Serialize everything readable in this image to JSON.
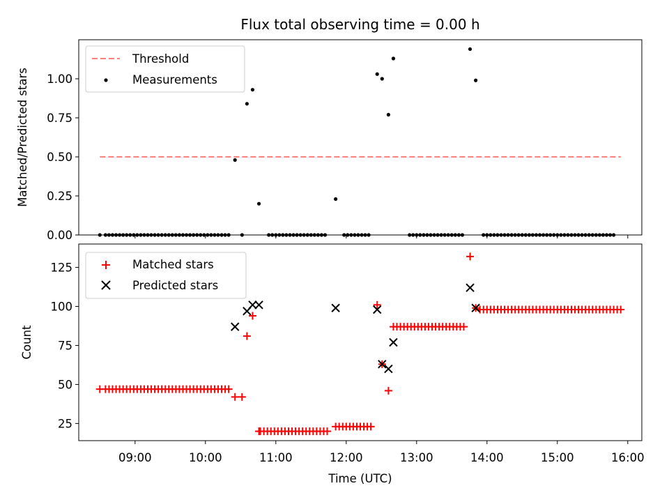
{
  "chart_data": [
    {
      "type": "scatter",
      "title": "Flux total observing time = 0.00 h",
      "ylabel": "Matched/Predicted stars",
      "xlabel": "",
      "xlim": [
        8.2,
        16.2
      ],
      "ylim": [
        0.0,
        1.25
      ],
      "yticks": [
        "0.00",
        "0.25",
        "0.50",
        "0.75",
        "1.00"
      ],
      "ytick_values": [
        0.0,
        0.25,
        0.5,
        0.75,
        1.0
      ],
      "xtick_values": [
        9,
        10,
        11,
        12,
        13,
        14,
        15,
        16
      ],
      "xtick_labels_shown": false,
      "legend": {
        "placement": "upper-left",
        "entries": [
          "Threshold",
          "Measurements"
        ]
      },
      "series": [
        {
          "name": "Threshold",
          "style": "dashed-line",
          "color": "#ff7f7f",
          "x": [
            8.5,
            15.9
          ],
          "y": [
            0.5,
            0.5
          ]
        },
        {
          "name": "Measurements",
          "style": "dot",
          "color": "#000000",
          "x": [
            8.5,
            8.58,
            8.63,
            8.68,
            8.73,
            8.78,
            8.83,
            8.88,
            8.93,
            8.98,
            9.03,
            9.08,
            9.13,
            9.18,
            9.23,
            9.28,
            9.33,
            9.38,
            9.43,
            9.48,
            9.53,
            9.58,
            9.63,
            9.68,
            9.73,
            9.78,
            9.83,
            9.88,
            9.93,
            9.98,
            10.03,
            10.08,
            10.13,
            10.18,
            10.23,
            10.28,
            10.33,
            10.42,
            10.52,
            10.59,
            10.67,
            10.76,
            10.9,
            10.95,
            11.0,
            11.05,
            11.1,
            11.15,
            11.2,
            11.25,
            11.3,
            11.35,
            11.4,
            11.45,
            11.5,
            11.55,
            11.6,
            11.65,
            11.7,
            11.85,
            11.97,
            12.02,
            12.07,
            12.12,
            12.17,
            12.22,
            12.27,
            12.32,
            12.44,
            12.51,
            12.6,
            12.67,
            12.9,
            12.95,
            13.0,
            13.05,
            13.1,
            13.15,
            13.2,
            13.25,
            13.3,
            13.35,
            13.4,
            13.45,
            13.5,
            13.55,
            13.6,
            13.65,
            13.76,
            13.84,
            13.95,
            14.0,
            14.05,
            14.1,
            14.15,
            14.2,
            14.25,
            14.3,
            14.35,
            14.4,
            14.45,
            14.5,
            14.55,
            14.6,
            14.65,
            14.7,
            14.75,
            14.8,
            14.85,
            14.9,
            14.95,
            15.0,
            15.05,
            15.1,
            15.15,
            15.2,
            15.25,
            15.3,
            15.35,
            15.4,
            15.45,
            15.5,
            15.55,
            15.6,
            15.65,
            15.7,
            15.75,
            15.8
          ],
          "y": [
            0,
            0,
            0,
            0,
            0,
            0,
            0,
            0,
            0,
            0,
            0,
            0,
            0,
            0,
            0,
            0,
            0,
            0,
            0,
            0,
            0,
            0,
            0,
            0,
            0,
            0,
            0,
            0,
            0,
            0,
            0,
            0,
            0,
            0,
            0,
            0,
            0,
            0.48,
            0,
            0.84,
            0.93,
            0.2,
            0,
            0,
            0,
            0,
            0,
            0,
            0,
            0,
            0,
            0,
            0,
            0,
            0,
            0,
            0,
            0,
            0,
            0.23,
            0,
            0,
            0,
            0,
            0,
            0,
            0,
            0,
            1.03,
            1.0,
            0.77,
            1.13,
            0,
            0,
            0,
            0,
            0,
            0,
            0,
            0,
            0,
            0,
            0,
            0,
            0,
            0,
            0,
            0,
            1.19,
            0.99,
            0,
            0,
            0,
            0,
            0,
            0,
            0,
            0,
            0,
            0,
            0,
            0,
            0,
            0,
            0,
            0,
            0,
            0,
            0,
            0,
            0,
            0,
            0,
            0,
            0,
            0,
            0,
            0,
            0,
            0,
            0,
            0,
            0,
            0,
            0,
            0,
            0,
            0
          ]
        }
      ],
      "colors": {
        "threshold": "#ff7f7f",
        "measurements": "#000000"
      }
    },
    {
      "type": "scatter",
      "title": "",
      "ylabel": "Count",
      "xlabel": "Time (UTC)",
      "xlim": [
        8.2,
        16.2
      ],
      "ylim": [
        14,
        140
      ],
      "yticks": [
        "25",
        "50",
        "75",
        "100",
        "125"
      ],
      "ytick_values": [
        25,
        50,
        75,
        100,
        125
      ],
      "xtick_values": [
        9,
        10,
        11,
        12,
        13,
        14,
        15,
        16
      ],
      "xticks": [
        "09:00",
        "10:00",
        "11:00",
        "12:00",
        "13:00",
        "14:00",
        "15:00",
        "16:00"
      ],
      "legend": {
        "placement": "upper-left",
        "entries": [
          "Matched stars",
          "Predicted stars"
        ]
      },
      "series": [
        {
          "name": "Matched stars",
          "marker": "+",
          "color": "#ff0000",
          "x": [
            8.5,
            8.58,
            8.63,
            8.68,
            8.73,
            8.78,
            8.83,
            8.88,
            8.93,
            8.98,
            9.03,
            9.08,
            9.13,
            9.18,
            9.23,
            9.28,
            9.33,
            9.38,
            9.43,
            9.48,
            9.53,
            9.58,
            9.63,
            9.68,
            9.73,
            9.78,
            9.83,
            9.88,
            9.93,
            9.98,
            10.03,
            10.08,
            10.13,
            10.18,
            10.23,
            10.28,
            10.33,
            10.42,
            10.52,
            10.59,
            10.67,
            10.76,
            10.78,
            10.83,
            10.88,
            10.93,
            10.98,
            11.03,
            11.08,
            11.13,
            11.18,
            11.23,
            11.28,
            11.33,
            11.38,
            11.43,
            11.48,
            11.53,
            11.58,
            11.63,
            11.68,
            11.73,
            11.85,
            11.9,
            11.95,
            12.0,
            12.05,
            12.1,
            12.15,
            12.2,
            12.25,
            12.3,
            12.35,
            12.44,
            12.51,
            12.6,
            12.67,
            12.72,
            12.77,
            12.82,
            12.87,
            12.92,
            12.97,
            13.02,
            13.07,
            13.12,
            13.17,
            13.22,
            13.27,
            13.32,
            13.37,
            13.42,
            13.47,
            13.52,
            13.57,
            13.62,
            13.67,
            13.76,
            13.84,
            13.9,
            13.95,
            14.0,
            14.05,
            14.1,
            14.15,
            14.2,
            14.25,
            14.3,
            14.35,
            14.4,
            14.45,
            14.5,
            14.55,
            14.6,
            14.65,
            14.7,
            14.75,
            14.8,
            14.85,
            14.9,
            14.95,
            15.0,
            15.05,
            15.1,
            15.15,
            15.2,
            15.25,
            15.3,
            15.35,
            15.4,
            15.45,
            15.5,
            15.55,
            15.6,
            15.65,
            15.7,
            15.75,
            15.8,
            15.85,
            15.9
          ],
          "y": [
            47,
            47,
            47,
            47,
            47,
            47,
            47,
            47,
            47,
            47,
            47,
            47,
            47,
            47,
            47,
            47,
            47,
            47,
            47,
            47,
            47,
            47,
            47,
            47,
            47,
            47,
            47,
            47,
            47,
            47,
            47,
            47,
            47,
            47,
            47,
            47,
            47,
            42,
            42,
            81,
            94,
            20,
            20,
            20,
            20,
            20,
            20,
            20,
            20,
            20,
            20,
            20,
            20,
            20,
            20,
            20,
            20,
            20,
            20,
            20,
            20,
            20,
            23,
            23,
            23,
            23,
            23,
            23,
            23,
            23,
            23,
            23,
            23,
            101,
            63,
            46,
            87,
            87,
            87,
            87,
            87,
            87,
            87,
            87,
            87,
            87,
            87,
            87,
            87,
            87,
            87,
            87,
            87,
            87,
            87,
            87,
            87,
            132,
            99,
            98,
            98,
            98,
            98,
            98,
            98,
            98,
            98,
            98,
            98,
            98,
            98,
            98,
            98,
            98,
            98,
            98,
            98,
            98,
            98,
            98,
            98,
            98,
            98,
            98,
            98,
            98,
            98,
            98,
            98,
            98,
            98,
            98,
            98,
            98,
            98,
            98,
            98,
            98,
            98,
            98
          ]
        },
        {
          "name": "Predicted stars",
          "marker": "x",
          "color": "#000000",
          "x": [
            10.42,
            10.59,
            10.67,
            10.76,
            11.85,
            12.44,
            12.51,
            12.6,
            12.67,
            13.76,
            13.84
          ],
          "y": [
            87,
            97,
            101,
            101,
            99,
            98,
            63,
            60,
            77,
            112,
            99
          ]
        }
      ],
      "colors": {
        "matched": "#ff0000",
        "predicted": "#000000"
      }
    }
  ]
}
